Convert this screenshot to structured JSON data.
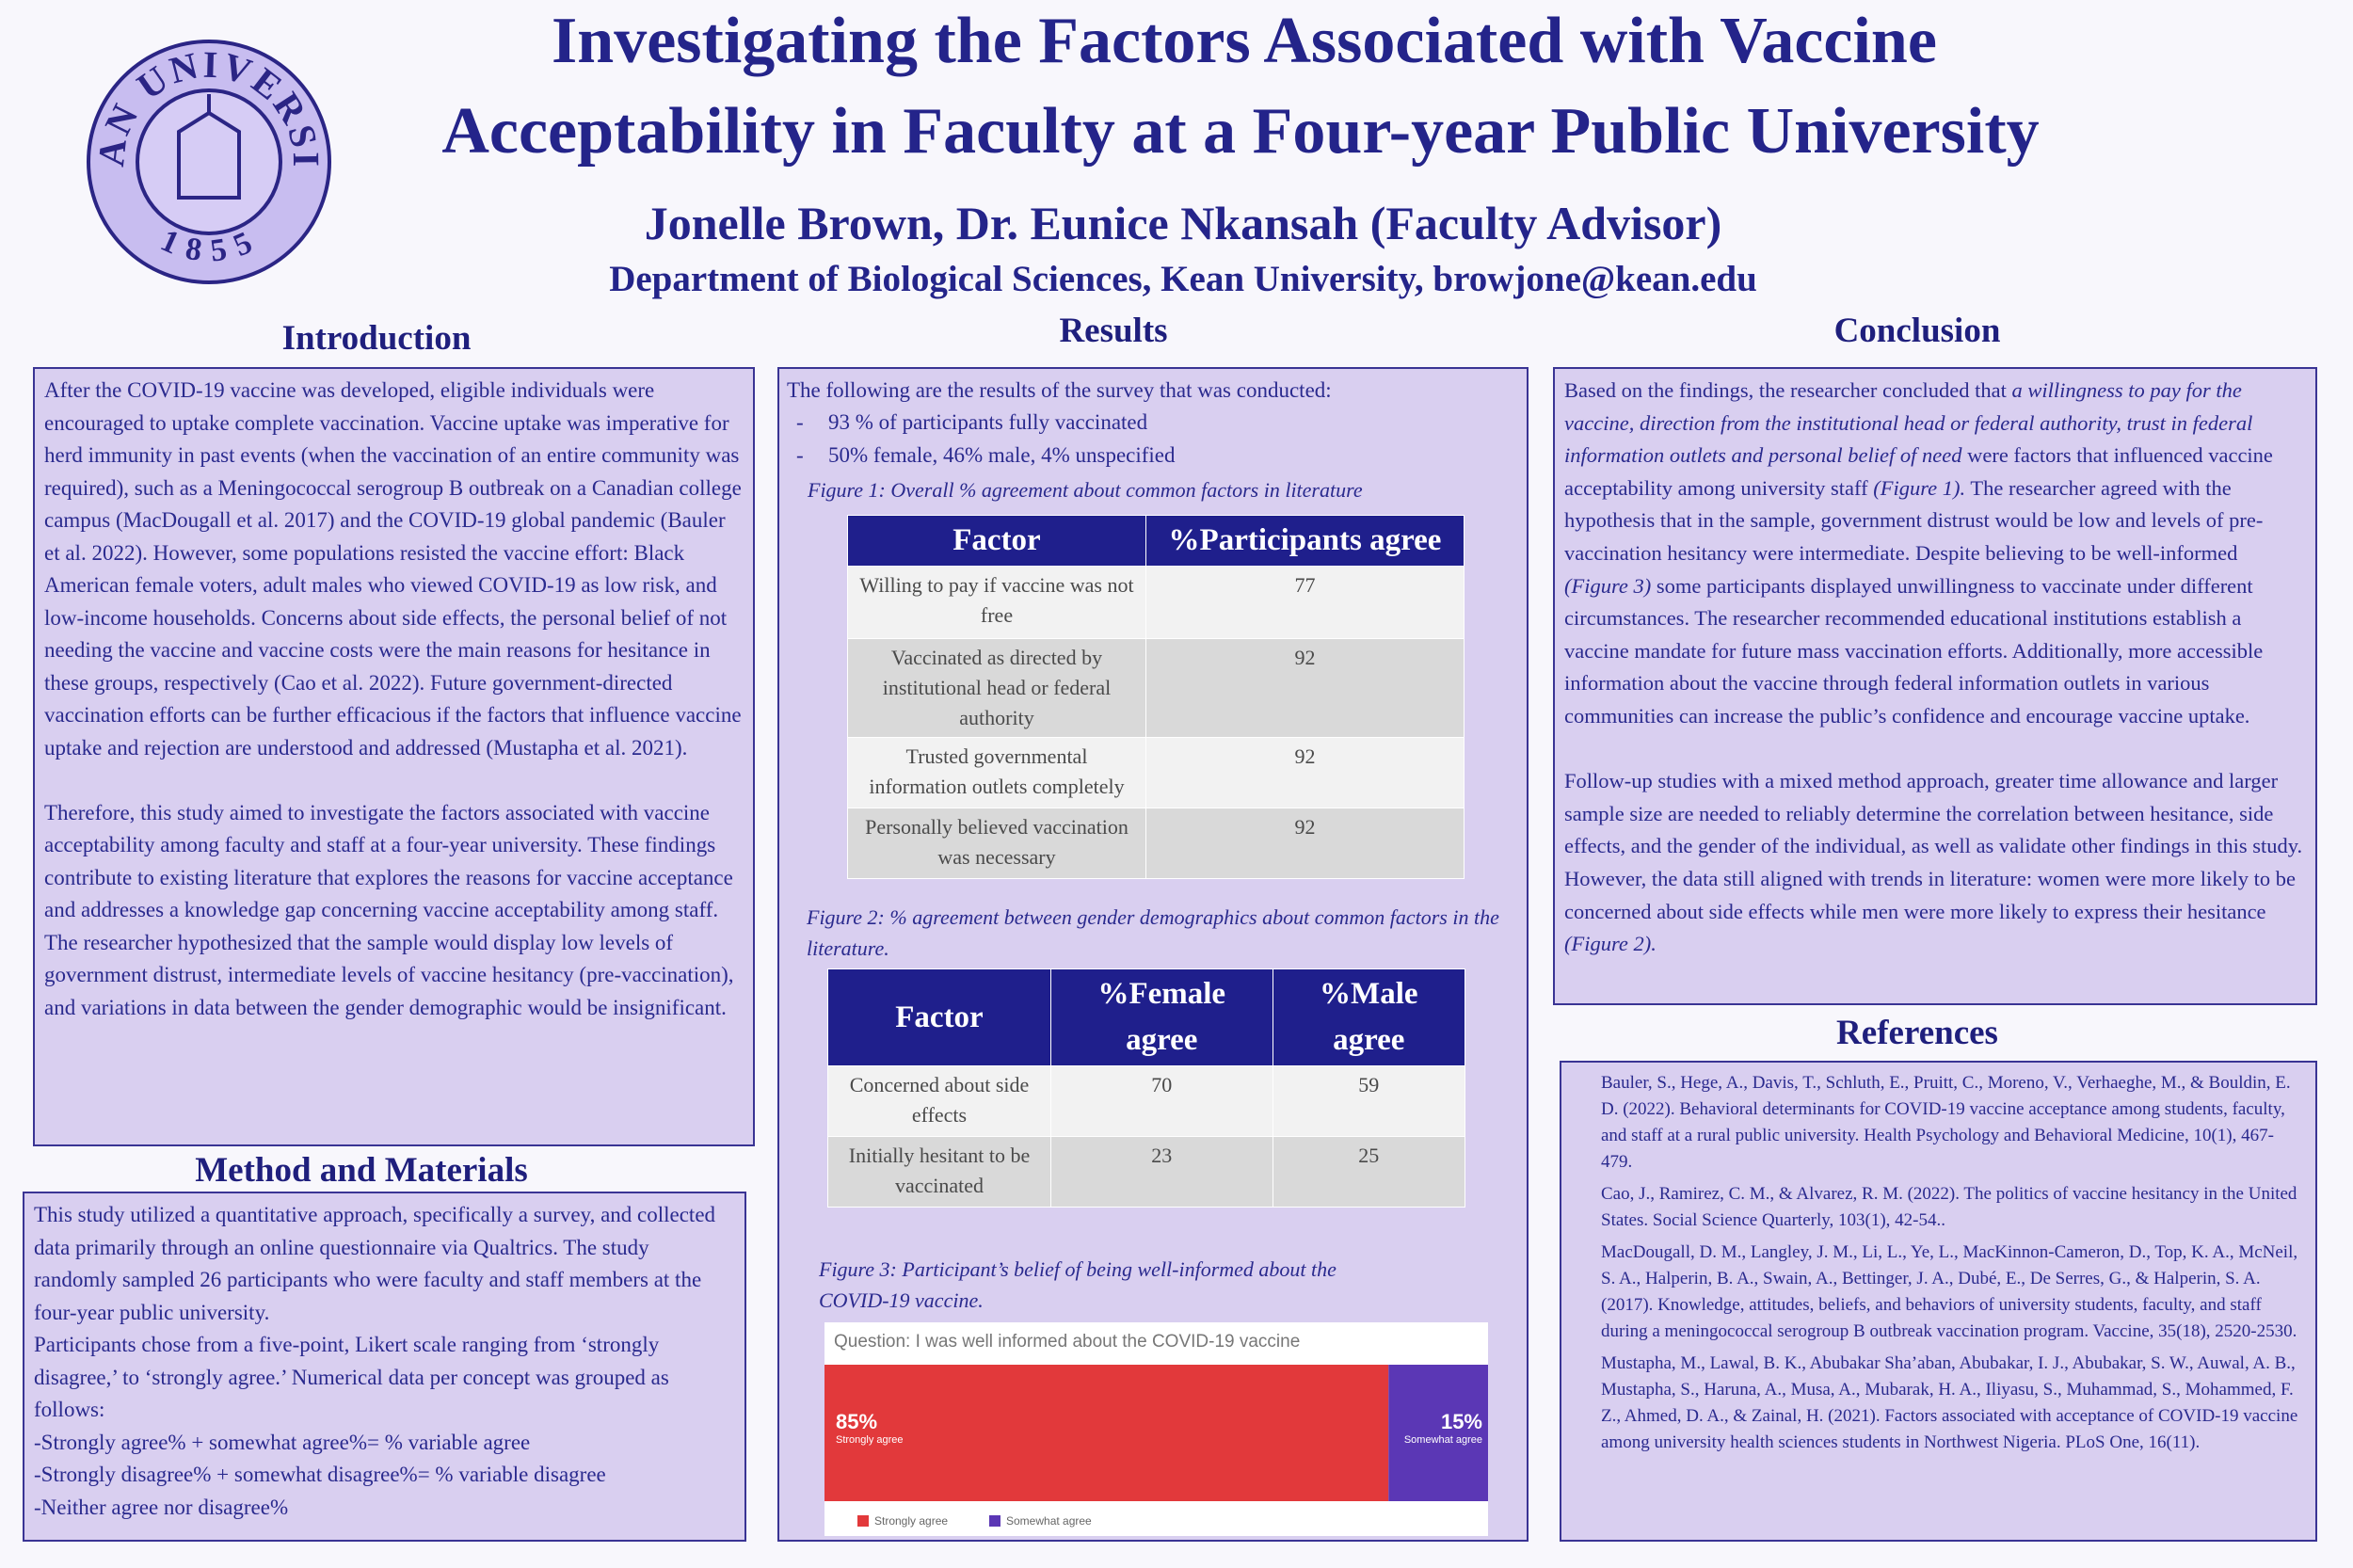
{
  "header": {
    "title_lines": [
      "Investigating the Factors Associated with Vaccine",
      "Acceptability in Faculty at a Four-year Public University"
    ],
    "authors": "Jonelle Brown, Dr. Eunice Nkansah (Faculty Advisor)",
    "department": "Department of Biological Sciences, Kean University, browjone@kean.edu"
  },
  "logo": {
    "name": "KEAN UNIVERSITY",
    "year": "1855"
  },
  "introduction": {
    "heading": "Introduction",
    "paragraphs": [
      "After the COVID-19 vaccine was developed, eligible individuals were encouraged to uptake complete vaccination. Vaccine uptake was imperative for herd immunity in past events (when the vaccination of an entire community was required), such as a Meningococcal serogroup B outbreak on a Canadian college campus (MacDougall et al. 2017) and the COVID-19 global pandemic (Bauler et al. 2022). However, some populations resisted the vaccine effort: Black American female voters, adult males who viewed COVID-19 as low risk, and low-income households. Concerns about side effects, the personal belief of not needing the vaccine and vaccine costs were the main reasons for hesitance in these groups, respectively (Cao et al. 2022). Future government-directed vaccination efforts can be further efficacious if the factors that influence vaccine uptake and rejection are understood and addressed (Mustapha et al. 2021).",
      "Therefore, this study aimed to investigate the factors associated with vaccine acceptability among faculty and staff at a four-year university. These findings contribute to existing literature that explores the reasons for vaccine acceptance and addresses a knowledge gap concerning vaccine acceptability among staff. The researcher hypothesized that the sample would display low levels of government distrust, intermediate levels of vaccine hesitancy (pre-vaccination), and variations in data between the gender demographic would be insignificant."
    ]
  },
  "methods": {
    "heading": "Method and Materials",
    "paragraphs": [
      "This study utilized a quantitative approach, specifically a survey, and collected data primarily through an online questionnaire via Qualtrics. The study randomly sampled 26 participants who were faculty and staff members at the four-year public university.",
      "Participants chose from a five-point, Likert scale ranging from ‘strongly disagree,’ to ‘strongly agree.’ Numerical data per concept was grouped as follows:",
      "-Strongly agree% + somewhat agree%= % variable agree",
      "-Strongly disagree% + somewhat disagree%=  % variable disagree",
      "-Neither agree nor disagree%"
    ]
  },
  "results": {
    "heading": "Results",
    "lead": "The following are the results of the survey that was conducted:",
    "bullets": [
      "93 % of participants fully vaccinated",
      "50% female, 46% male, 4% unspecified"
    ],
    "figure1": {
      "caption": "Figure 1: Overall % agreement about common factors in literature",
      "columns": [
        "Factor",
        "%Participants agree"
      ],
      "rows": [
        [
          "Willing to pay if vaccine was not free",
          77
        ],
        [
          "Vaccinated as directed by institutional head or federal authority",
          92
        ],
        [
          "Trusted governmental information outlets completely",
          92
        ],
        [
          "Personally believed vaccination was necessary",
          92
        ]
      ]
    },
    "figure2": {
      "caption": "Figure 2: % agreement between gender demographics about common factors in the literature.",
      "columns": [
        "Factor",
        "%Female agree",
        "%Male agree"
      ],
      "rows": [
        [
          "Concerned about side effects",
          70,
          59
        ],
        [
          "Initially hesitant to be vaccinated",
          23,
          25
        ]
      ]
    },
    "figure3": {
      "caption": "Figure 3: Participant’s belief of being well-informed about the COVID-19 vaccine.",
      "question": "Question: I was well informed about the COVID-19 vaccine",
      "categories": [
        "Strongly agree",
        "Somewhat agree"
      ],
      "values": [
        85,
        15
      ],
      "value_labels": [
        "85%",
        "15%"
      ],
      "colors": [
        "#e2393b",
        "#5b37b5"
      ]
    }
  },
  "conclusion": {
    "heading": "Conclusion",
    "paragraphs": [
      [
        {
          "text": "Based on the findings, the researcher concluded that ",
          "italic": false
        },
        {
          "text": "a willingness to pay for the vaccine, direction from the institutional head or federal authority, trust in federal information outlets and personal belief of need",
          "italic": true
        },
        {
          "text": " were factors that influenced vaccine acceptability among university staff ",
          "italic": false
        },
        {
          "text": "(Figure 1).",
          "italic": true
        },
        {
          "text": " The researcher agreed with the hypothesis that in the sample, government distrust would be low and levels of pre-vaccination hesitancy were intermediate. Despite believing to be well-informed ",
          "italic": false
        },
        {
          "text": "(Figure 3)",
          "italic": true
        },
        {
          "text": " some participants displayed unwillingness to vaccinate under different circumstances.  The researcher recommended educational institutions establish a vaccine mandate for future mass vaccination efforts. Additionally, more accessible information about the vaccine through federal information outlets in various communities can increase the public’s confidence and encourage vaccine uptake.",
          "italic": false
        }
      ],
      [
        {
          "text": "Follow-up studies with a mixed method approach, greater time allowance and larger sample size are needed to reliably determine the correlation between hesitance, side effects, and the gender of the individual, as well as validate other findings in this study. However, the data still aligned with trends in literature: women were more likely to be concerned about side effects while men were more likely to express their hesitance ",
          "italic": false
        },
        {
          "text": "(Figure 2).",
          "italic": true
        }
      ]
    ]
  },
  "references": {
    "heading": "References",
    "items": [
      "Bauler, S., Hege, A., Davis, T., Schluth, E., Pruitt, C., Moreno, V., Verhaeghe, M., & Bouldin, E. D. (2022). Behavioral determinants for COVID-19 vaccine acceptance among students, faculty, and staff at a rural public university. Health Psychology and Behavioral Medicine, 10(1), 467-479.",
      "Cao, J., Ramirez, C. M., & Alvarez, R. M. (2022). The politics of vaccine hesitancy in the United States. Social Science Quarterly, 103(1), 42-54..",
      "MacDougall, D. M., Langley, J. M., Li, L., Ye, L., MacKinnon-Cameron, D., Top, K. A., McNeil, S. A., Halperin, B. A., Swain, A., Bettinger, J. A., Dubé, E., De Serres, G., & Halperin, S. A. (2017). Knowledge, attitudes, beliefs, and behaviors of university students, faculty, and staff during a meningococcal serogroup B outbreak vaccination program. Vaccine, 35(18), 2520-2530.",
      "Mustapha, M., Lawal, B. K., Abubakar Sha’aban, Abubakar, I. J., Abubakar, S. W., Auwal, A. B., Mustapha, S., Haruna, A., Musa, A., Mubarak, H. A., Iliyasu, S., Muhammad, S., Mohammed, F. Z., Ahmed, D. A., & Zainal, H. (2021). Factors associated with acceptance of COVID-19 vaccine among university health sciences students in Northwest Nigeria. PLoS One, 16(11)."
    ]
  }
}
